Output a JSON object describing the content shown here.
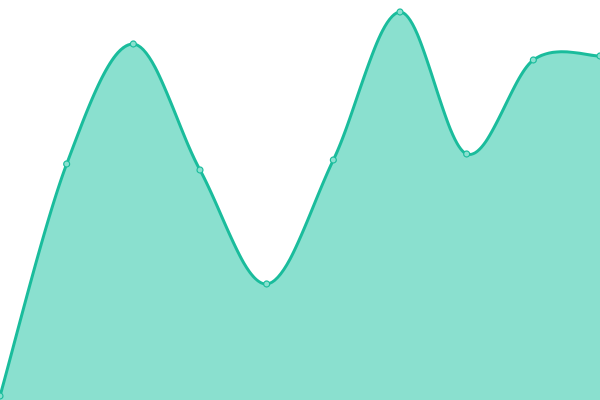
{
  "chart_data": {
    "type": "area",
    "title": "",
    "xlabel": "",
    "ylabel": "",
    "x": [
      0,
      1,
      2,
      3,
      4,
      5,
      6,
      7,
      8,
      9
    ],
    "values": [
      1,
      59,
      89,
      57.5,
      29,
      60,
      97,
      61.5,
      85,
      86
    ],
    "ylim": [
      0,
      100
    ],
    "grid": false,
    "axes_visible": false,
    "smooth": true,
    "markers": true,
    "colors": {
      "line": "#1abc9c",
      "fill": "#8ae0cf",
      "marker_fill": "#8ae0cf"
    }
  }
}
